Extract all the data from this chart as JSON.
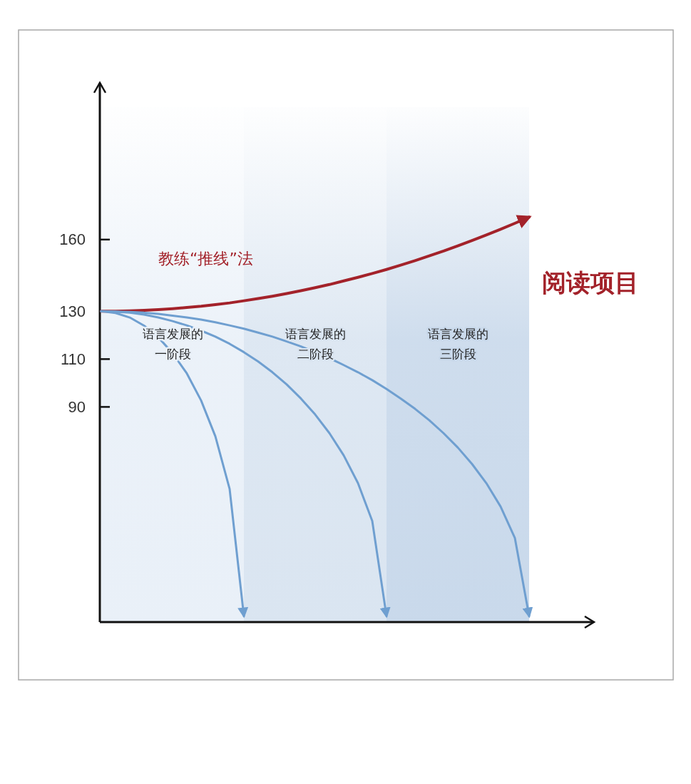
{
  "chart_data": {
    "type": "line",
    "categories": [
      null,
      null,
      null,
      null,
      null,
      null,
      null,
      null,
      null,
      null,
      null,
      null,
      null,
      null,
      null,
      null,
      null,
      null,
      null,
      null,
      null,
      null,
      null,
      null,
      null,
      null,
      null,
      null,
      null,
      null,
      null
    ],
    "ylim": [
      0,
      225
    ],
    "yticks": [
      90,
      110,
      130,
      160
    ],
    "tick_labels": "y",
    "marker": "none",
    "line_style": "solid",
    "series": [
      {
        "color": "#a3222a",
        "values": [
          130,
          130,
          130.2,
          130.4,
          130.7,
          131.1,
          131.6,
          132.1,
          132.8,
          133.5,
          134.4,
          135.3,
          136.3,
          137.4,
          138.6,
          139.9,
          141.2,
          142.7,
          144.2,
          145.8,
          147.5,
          149.3,
          151.2,
          153.2,
          155.2,
          157.4,
          159.6,
          161.9,
          164.3,
          166.8,
          169.4
        ]
      },
      {
        "color": "#6f9fd0",
        "values": [
          130,
          129.3,
          127.4,
          124,
          119.1,
          112.5,
          104,
          92.7,
          77.7,
          55.7,
          2.5,
          null,
          null,
          null,
          null,
          null,
          null,
          null,
          null,
          null,
          null,
          null,
          null,
          null,
          null,
          null,
          null,
          null,
          null,
          null,
          null
        ]
      },
      {
        "color": "#6f9fd0",
        "values": [
          130,
          129.8,
          129.4,
          128.6,
          127.4,
          125.9,
          124.1,
          121.9,
          119.4,
          116.4,
          112.9,
          109,
          104.5,
          99.4,
          93.5,
          86.8,
          79,
          69.7,
          58.1,
          42.3,
          2.5,
          null,
          null,
          null,
          null,
          null,
          null,
          null,
          null,
          null,
          null
        ]
      },
      {
        "color": "#6f9fd0",
        "values": [
          130,
          129.9,
          129.7,
          129.4,
          128.9,
          128.2,
          127.4,
          126.5,
          125.4,
          124.1,
          122.7,
          121.1,
          119.4,
          117.4,
          115.3,
          112.9,
          110.4,
          107.5,
          104.5,
          101.2,
          97.5,
          93.5,
          89.2,
          84.4,
          79,
          73,
          66.1,
          58.1,
          48.3,
          35.2,
          2.5
        ]
      }
    ],
    "annotations": [
      "教练“推线”法",
      "阅读项目",
      "语言发展的一阶段",
      "语言发展的二阶段",
      "语言发展的三阶段"
    ]
  }
}
